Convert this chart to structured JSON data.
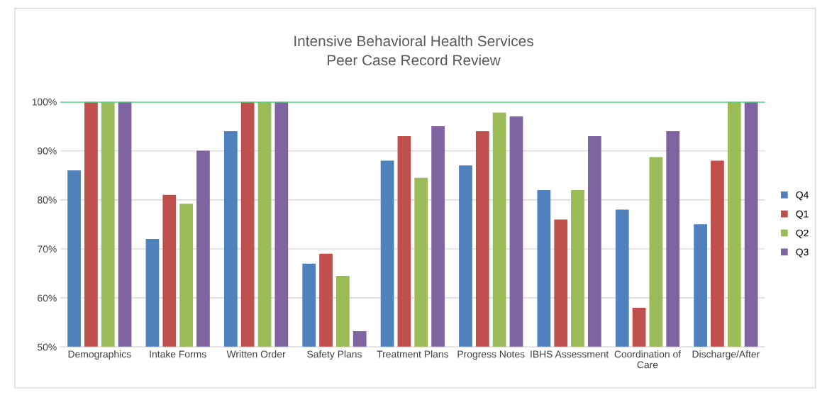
{
  "chart_data": {
    "type": "bar",
    "title": "Intensive Behavioral Health Services\nPeer Case Record Review",
    "categories": [
      "Demographics",
      "Intake Forms",
      "Written Order",
      "Safety Plans",
      "Treatment Plans",
      "Progress Notes",
      "IBHS Assessment",
      "Coordination of\nCare",
      "Discharge/After"
    ],
    "series": [
      {
        "name": "Q4",
        "color": "#4f81bd",
        "values": [
          86,
          72,
          94,
          67,
          88,
          87,
          82,
          78,
          75
        ]
      },
      {
        "name": "Q1",
        "color": "#c0504d",
        "values": [
          100,
          81,
          100,
          69,
          93,
          94,
          76,
          58,
          88
        ]
      },
      {
        "name": "Q2",
        "color": "#9bbb59",
        "values": [
          100,
          79.2,
          100,
          64.5,
          84.5,
          97.8,
          82,
          88.7,
          100
        ]
      },
      {
        "name": "Q3",
        "color": "#8064a2",
        "values": [
          100,
          90,
          100,
          53.2,
          95,
          97,
          93,
          94,
          100
        ]
      }
    ],
    "ylim": [
      50,
      100
    ],
    "yticks": [
      {
        "value": 50,
        "label": "50%"
      },
      {
        "value": 60,
        "label": "60%"
      },
      {
        "value": 70,
        "label": "70%"
      },
      {
        "value": 80,
        "label": "80%"
      },
      {
        "value": 90,
        "label": "90%"
      },
      {
        "value": 100,
        "label": "100%"
      }
    ],
    "ref_lines": [
      {
        "axis": "y",
        "value": 100,
        "color": "#4fd17a"
      }
    ],
    "grid": "y",
    "legend": "right"
  }
}
